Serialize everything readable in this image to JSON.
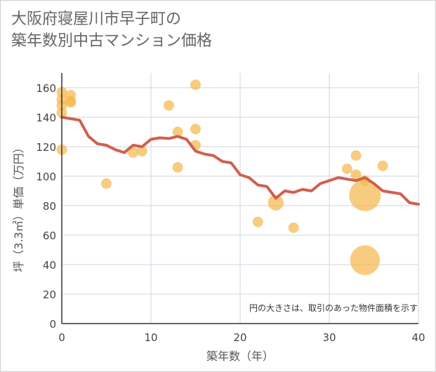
{
  "title_line1": "大阪府寝屋川市早子町の",
  "title_line2": "築年数別中古マンション価格",
  "chart_data": {
    "type": "scatter",
    "xlabel": "築年数（年）",
    "ylabel": "坪（3.3㎡）単価（万円）",
    "xlim": [
      0,
      40
    ],
    "ylim": [
      0,
      170
    ],
    "xticks": [
      0,
      10,
      20,
      30,
      40
    ],
    "yticks": [
      0,
      20,
      40,
      60,
      80,
      100,
      120,
      140,
      160
    ],
    "grid": true,
    "note": "円の大きさは、取引のあった物件面積を示す",
    "colors": {
      "bubble": "#f5b94f",
      "line": "#d0604f",
      "grid": "#ccd6e0"
    },
    "scatter_points": [
      {
        "x": 0,
        "y": 157,
        "size": 1
      },
      {
        "x": 0,
        "y": 152,
        "size": 1
      },
      {
        "x": 0,
        "y": 148,
        "size": 1
      },
      {
        "x": 0,
        "y": 143,
        "size": 1
      },
      {
        "x": 0,
        "y": 118,
        "size": 1
      },
      {
        "x": 1,
        "y": 155,
        "size": 1
      },
      {
        "x": 1,
        "y": 151,
        "size": 1
      },
      {
        "x": 1,
        "y": 150,
        "size": 1
      },
      {
        "x": 5,
        "y": 95,
        "size": 1
      },
      {
        "x": 8,
        "y": 116,
        "size": 1
      },
      {
        "x": 9,
        "y": 117,
        "size": 1
      },
      {
        "x": 12,
        "y": 148,
        "size": 1
      },
      {
        "x": 13,
        "y": 130,
        "size": 1
      },
      {
        "x": 13,
        "y": 106,
        "size": 1
      },
      {
        "x": 15,
        "y": 162,
        "size": 1
      },
      {
        "x": 15,
        "y": 132,
        "size": 1
      },
      {
        "x": 15,
        "y": 121,
        "size": 1
      },
      {
        "x": 22,
        "y": 69,
        "size": 1
      },
      {
        "x": 24,
        "y": 82,
        "size": 2.2
      },
      {
        "x": 26,
        "y": 65,
        "size": 1
      },
      {
        "x": 32,
        "y": 105,
        "size": 1
      },
      {
        "x": 33,
        "y": 114,
        "size": 1
      },
      {
        "x": 33,
        "y": 101,
        "size": 1
      },
      {
        "x": 34,
        "y": 97,
        "size": 1
      },
      {
        "x": 34,
        "y": 87,
        "size": 9
      },
      {
        "x": 34,
        "y": 43,
        "size": 8
      },
      {
        "x": 36,
        "y": 107,
        "size": 1
      }
    ],
    "trend_line": {
      "x": [
        0,
        1,
        2,
        3,
        4,
        5,
        6,
        7,
        8,
        9,
        10,
        11,
        12,
        13,
        14,
        15,
        16,
        17,
        18,
        19,
        20,
        21,
        22,
        23,
        24,
        25,
        26,
        27,
        28,
        29,
        30,
        31,
        32,
        33,
        34,
        35,
        36,
        37,
        38,
        39,
        40
      ],
      "y": [
        140,
        139,
        138,
        127,
        122,
        121,
        118,
        116,
        121,
        120,
        125,
        126,
        125.5,
        127,
        125,
        117,
        115,
        114,
        110,
        109,
        101,
        99,
        94,
        93,
        85,
        90,
        89,
        91,
        90,
        95,
        97,
        99,
        98,
        97,
        99,
        95,
        90,
        89,
        88,
        82,
        81
      ]
    }
  }
}
